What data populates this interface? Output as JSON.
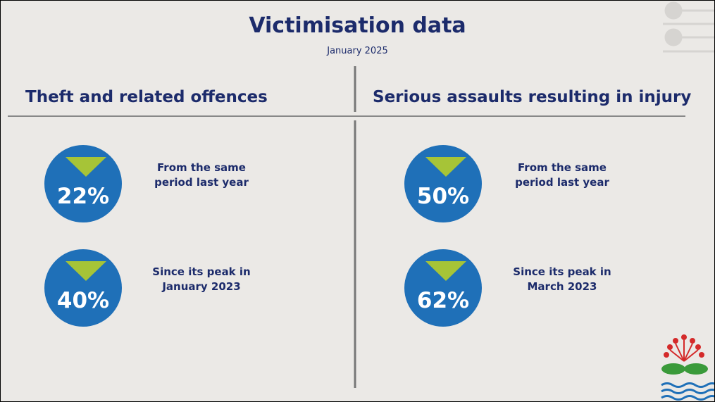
{
  "header": {
    "title": "Victimisation data",
    "subtitle": "January 2025"
  },
  "panels": [
    {
      "heading": "Theft and related offences",
      "stats": [
        {
          "value": "22%",
          "caption": "From the same period last year"
        },
        {
          "value": "40%",
          "caption": "Since its peak in January 2023"
        }
      ]
    },
    {
      "heading": "Serious assaults resulting in injury",
      "stats": [
        {
          "value": "50%",
          "caption": "From the same period last year"
        },
        {
          "value": "62%",
          "caption": "Since its peak in March 2023"
        }
      ]
    }
  ]
}
